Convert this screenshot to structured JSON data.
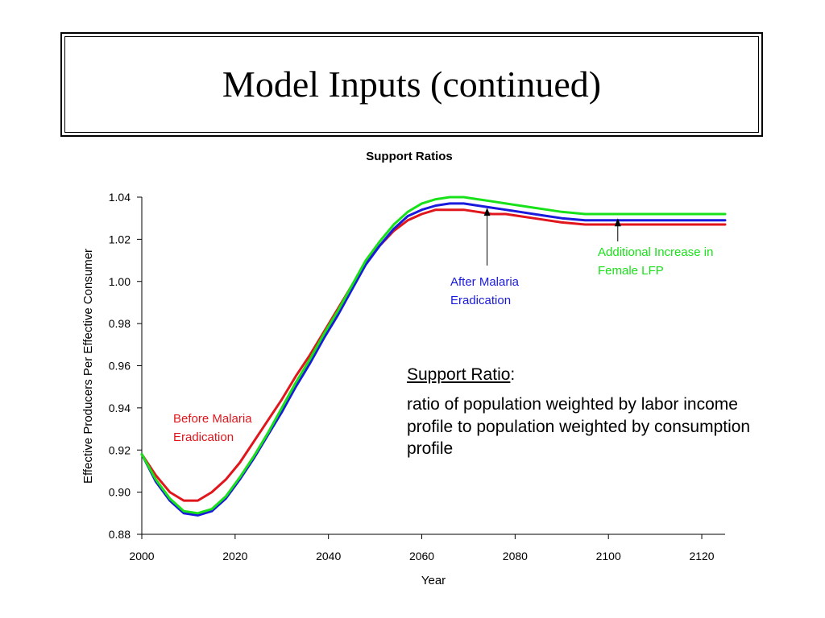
{
  "slide": {
    "title": "Model Inputs (continued)"
  },
  "callout": {
    "term": "Support Ratio",
    "colon": ":",
    "definition": "ratio of population weighted by labor income profile to population weighted by consumption profile"
  },
  "chart_data": {
    "type": "line",
    "title": "Support Ratios",
    "xlabel": "Year",
    "ylabel": "Effective Producers Per Effective Consumer",
    "xlim": [
      2000,
      2125
    ],
    "ylim": [
      0.88,
      1.04
    ],
    "x_ticks": [
      2000,
      2020,
      2040,
      2060,
      2080,
      2100,
      2120
    ],
    "y_ticks": [
      0.88,
      0.9,
      0.92,
      0.94,
      0.96,
      0.98,
      1.0,
      1.02,
      1.04
    ],
    "grid": false,
    "legend": "none",
    "series": [
      {
        "color": "#e0161c",
        "x": [
          2000,
          2003,
          2006,
          2009,
          2012,
          2015,
          2018,
          2021,
          2024,
          2027,
          2030,
          2033,
          2036,
          2039,
          2042,
          2045,
          2048,
          2051,
          2054,
          2057,
          2060,
          2063,
          2066,
          2069,
          2072,
          2075,
          2078,
          2081,
          2084,
          2087,
          2090,
          2095,
          2100,
          2105,
          2110,
          2125
        ],
        "y": [
          0.918,
          0.908,
          0.9,
          0.896,
          0.896,
          0.9,
          0.906,
          0.914,
          0.924,
          0.934,
          0.944,
          0.955,
          0.965,
          0.976,
          0.987,
          0.998,
          1.009,
          1.017,
          1.024,
          1.029,
          1.032,
          1.034,
          1.034,
          1.034,
          1.033,
          1.032,
          1.032,
          1.031,
          1.03,
          1.029,
          1.028,
          1.027,
          1.027,
          1.027,
          1.027,
          1.027
        ]
      },
      {
        "color": "#1a1adc",
        "x": [
          2000,
          2003,
          2006,
          2009,
          2012,
          2015,
          2018,
          2021,
          2024,
          2027,
          2030,
          2033,
          2036,
          2039,
          2042,
          2045,
          2048,
          2051,
          2054,
          2057,
          2060,
          2063,
          2066,
          2069,
          2072,
          2075,
          2078,
          2081,
          2084,
          2087,
          2090,
          2095,
          2100,
          2105,
          2110,
          2125
        ],
        "y": [
          0.918,
          0.905,
          0.896,
          0.89,
          0.889,
          0.891,
          0.897,
          0.906,
          0.916,
          0.927,
          0.938,
          0.95,
          0.961,
          0.973,
          0.984,
          0.996,
          1.008,
          1.017,
          1.025,
          1.031,
          1.034,
          1.036,
          1.037,
          1.037,
          1.036,
          1.035,
          1.034,
          1.033,
          1.032,
          1.031,
          1.03,
          1.029,
          1.029,
          1.029,
          1.029,
          1.029
        ]
      },
      {
        "color": "#19e119",
        "x": [
          2000,
          2003,
          2006,
          2009,
          2012,
          2015,
          2018,
          2021,
          2024,
          2027,
          2030,
          2033,
          2036,
          2039,
          2042,
          2045,
          2048,
          2051,
          2054,
          2057,
          2060,
          2063,
          2066,
          2069,
          2072,
          2075,
          2078,
          2081,
          2084,
          2087,
          2090,
          2095,
          2100,
          2105,
          2110,
          2125
        ],
        "y": [
          0.918,
          0.906,
          0.897,
          0.891,
          0.89,
          0.892,
          0.898,
          0.907,
          0.917,
          0.928,
          0.94,
          0.952,
          0.963,
          0.975,
          0.986,
          0.998,
          1.01,
          1.019,
          1.027,
          1.033,
          1.037,
          1.039,
          1.04,
          1.04,
          1.039,
          1.038,
          1.037,
          1.036,
          1.035,
          1.034,
          1.033,
          1.032,
          1.032,
          1.032,
          1.032,
          1.032
        ]
      }
    ],
    "annotations": [
      {
        "text_lines": [
          "Before Malaria",
          "Eradication"
        ],
        "color": "#e0161c",
        "arrow": false
      },
      {
        "text_lines": [
          "After Malaria",
          "Eradication"
        ],
        "color": "#1a1adc",
        "arrow": true,
        "arrow_tip": [
          2074,
          1.035
        ]
      },
      {
        "text_lines": [
          "Additional Increase in",
          "Female LFP"
        ],
        "color": "#19e119",
        "arrow": true,
        "arrow_tip": [
          2102,
          1.03
        ]
      }
    ]
  }
}
